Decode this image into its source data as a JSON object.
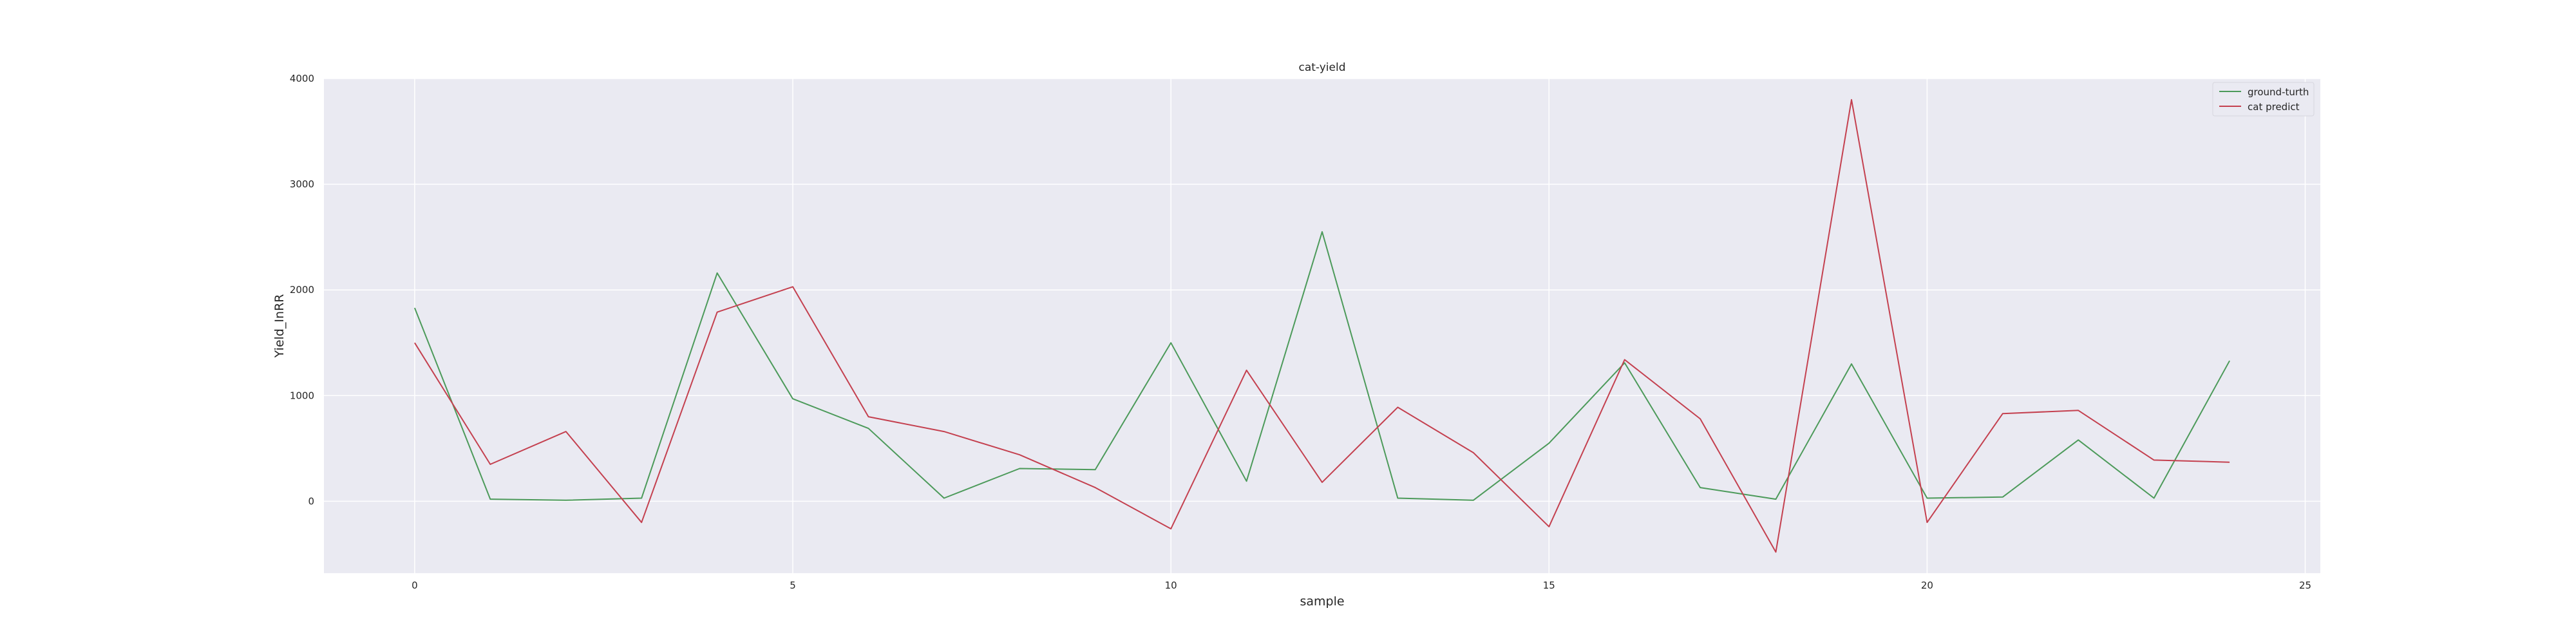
{
  "chart_data": {
    "type": "line",
    "title": "cat-yield",
    "xlabel": "sample",
    "ylabel": "Yield_InRR",
    "xlim": [
      -1.2,
      25.2
    ],
    "ylim": [
      -680,
      4000
    ],
    "xticks": [
      0,
      5,
      10,
      15,
      20,
      25
    ],
    "yticks": [
      0,
      1000,
      2000,
      3000,
      4000
    ],
    "grid": true,
    "legend_position": "top-right",
    "x": [
      0,
      1,
      2,
      3,
      4,
      5,
      6,
      7,
      8,
      9,
      10,
      11,
      12,
      13,
      14,
      15,
      16,
      17,
      18,
      19,
      20,
      21,
      22,
      23,
      24
    ],
    "series": [
      {
        "name": "ground-turth",
        "color": "#4c9a5a",
        "values": [
          1830,
          20,
          10,
          30,
          2160,
          970,
          690,
          30,
          310,
          300,
          1500,
          190,
          2550,
          30,
          10,
          550,
          1310,
          130,
          20,
          1300,
          30,
          40,
          580,
          30,
          1330
        ]
      },
      {
        "name": "cat predict",
        "color": "#c4404f",
        "values": [
          1500,
          350,
          660,
          -200,
          1790,
          2030,
          800,
          660,
          440,
          130,
          -260,
          1240,
          180,
          890,
          460,
          -240,
          1340,
          780,
          -480,
          3800,
          -200,
          830,
          860,
          390,
          370
        ]
      }
    ]
  }
}
